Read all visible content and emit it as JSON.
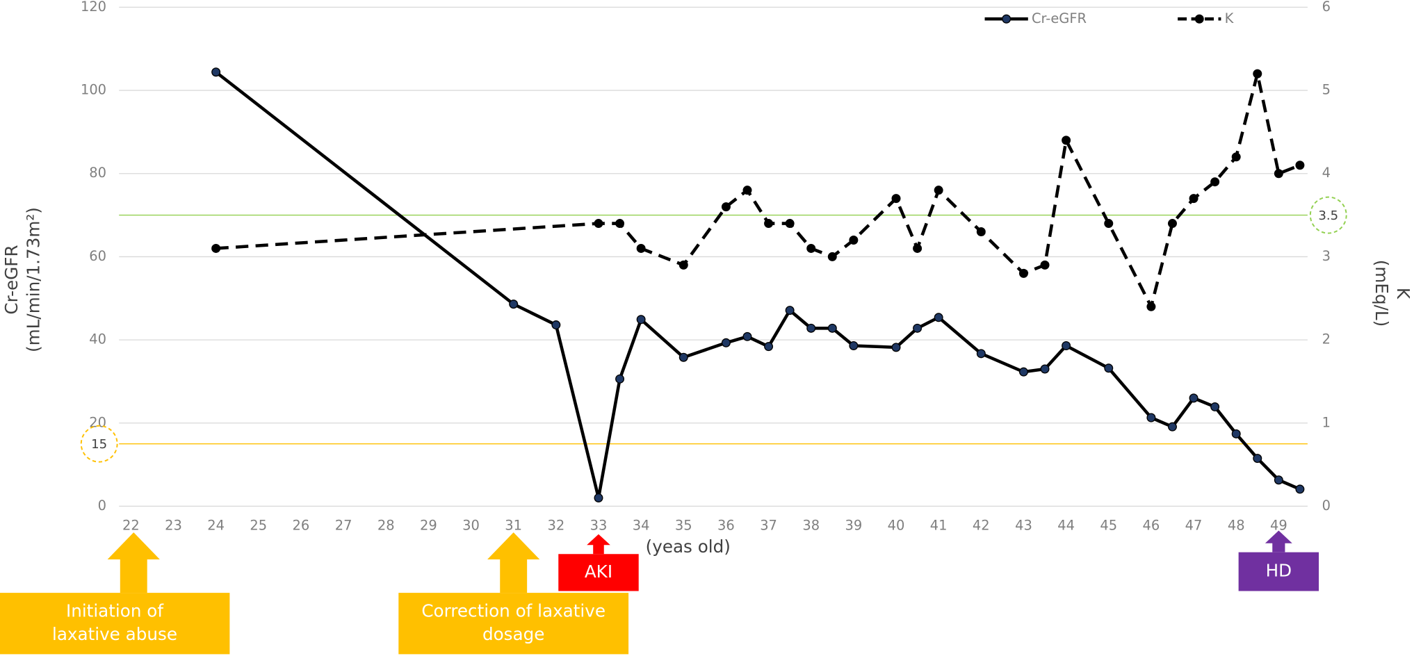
{
  "chart_data": {
    "type": "line",
    "x_label": "(yeas old)",
    "y_label": [
      "Cr-eGFR",
      "(mL/min/1.73m²)"
    ],
    "y2_label": [
      "K",
      "(mEq/L)"
    ],
    "xlim": [
      21.72,
      49.68
    ],
    "xticks": [
      22,
      23,
      24,
      25,
      26,
      27,
      28,
      29,
      30,
      31,
      32,
      33,
      34,
      35,
      36,
      37,
      38,
      39,
      40,
      41,
      42,
      43,
      44,
      45,
      46,
      47,
      48,
      49
    ],
    "ylim": [
      0,
      120
    ],
    "yticks": [
      0,
      20,
      40,
      60,
      80,
      100,
      120
    ],
    "y2lim": [
      0,
      6
    ],
    "y2ticks": [
      0,
      1,
      2,
      3,
      4,
      5,
      6
    ],
    "grid": true,
    "legend": "top-right",
    "series": [
      {
        "name": "Cr-eGFR",
        "color": "#000000",
        "marker_color": "#1f3864",
        "dashed": false,
        "x": [
          24,
          31,
          32,
          33,
          33.5,
          34,
          35,
          36,
          36.5,
          37,
          37.5,
          38,
          38.5,
          39,
          40,
          40.5,
          41,
          42,
          43,
          43.5,
          44,
          45,
          46,
          46.5,
          47,
          47.5,
          48,
          48.5,
          49,
          49.5
        ],
        "values": [
          104.4,
          48.6,
          43.6,
          2,
          30.6,
          44.9,
          35.8,
          39.3,
          40.8,
          38.4,
          47.1,
          42.8,
          42.8,
          38.6,
          38.2,
          42.8,
          45.4,
          36.7,
          32.3,
          33,
          38.6,
          33.2,
          21.3,
          19.1,
          26,
          23.9,
          17.4,
          11.5,
          6.3,
          4.1
        ]
      },
      {
        "name": "K",
        "color": "#000000",
        "marker_color": "#000000",
        "dashed": true,
        "axis": "y2",
        "x": [
          24,
          33,
          33.5,
          34,
          35,
          36,
          36.5,
          37,
          37.5,
          38,
          38.5,
          39,
          40,
          40.5,
          41,
          42,
          43,
          43.5,
          44,
          45,
          46,
          46.5,
          47,
          47.5,
          48,
          48.5,
          49,
          49.5
        ],
        "values": [
          3.1,
          3.4,
          3.4,
          3.1,
          2.9,
          3.6,
          3.8,
          3.4,
          3.4,
          3.1,
          3.0,
          3.2,
          3.7,
          3.1,
          3.8,
          3.3,
          2.8,
          2.9,
          4.4,
          3.4,
          2.4,
          3.4,
          3.7,
          3.9,
          4.2,
          5.2,
          4.0,
          4.1
        ]
      }
    ],
    "reference_lines": [
      {
        "value": 15,
        "axis": "y",
        "color": "#ffc000"
      },
      {
        "value": 3.5,
        "axis": "y2",
        "color": "#92d050"
      }
    ],
    "annotations": [
      {
        "lines": [
          "Initiation of",
          "laxative abuse"
        ],
        "x": 22,
        "color": "#ffc000"
      },
      {
        "lines": [
          "Correction of laxative",
          "dosage"
        ],
        "x": 31,
        "color": "#ffc000"
      },
      {
        "lines": [
          "AKI"
        ],
        "x": 33,
        "color": "#ff0000"
      },
      {
        "lines": [
          "HD"
        ],
        "x": 49,
        "color": "#7030a0"
      }
    ]
  }
}
